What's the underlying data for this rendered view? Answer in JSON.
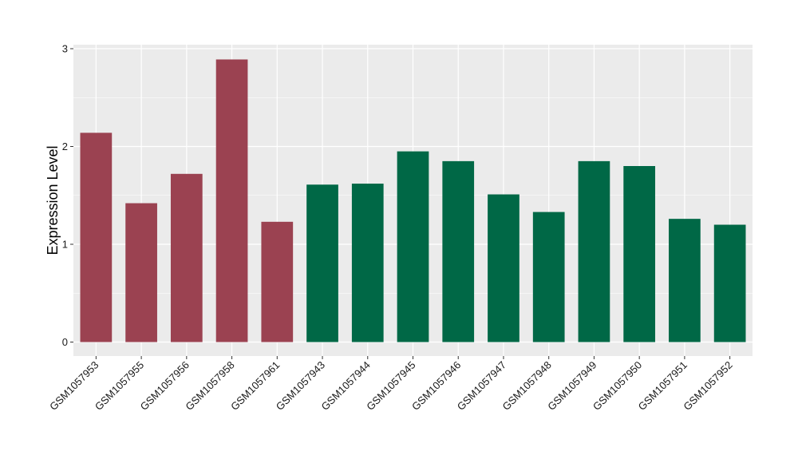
{
  "chart_data": {
    "type": "bar",
    "ylabel": "Expression Level",
    "xlabel": "",
    "ylim": [
      0,
      3.05
    ],
    "yticks": [
      0,
      1,
      2,
      3
    ],
    "grid": true,
    "categories": [
      "GSM1057953",
      "GSM1057955",
      "GSM1057956",
      "GSM1057958",
      "GSM1057961",
      "GSM1057943",
      "GSM1057944",
      "GSM1057945",
      "GSM1057946",
      "GSM1057947",
      "GSM1057948",
      "GSM1057949",
      "GSM1057950",
      "GSM1057951",
      "GSM1057952"
    ],
    "values": [
      2.14,
      1.42,
      1.72,
      2.89,
      1.23,
      1.61,
      1.62,
      1.95,
      1.85,
      1.51,
      1.33,
      1.85,
      1.8,
      1.26,
      1.2
    ],
    "groups": [
      0,
      0,
      0,
      0,
      0,
      1,
      1,
      1,
      1,
      1,
      1,
      1,
      1,
      1,
      1
    ],
    "colors": [
      "#9b4251",
      "#006846"
    ],
    "panel_color": "#ebebeb",
    "grid_color": "#ffffff"
  }
}
